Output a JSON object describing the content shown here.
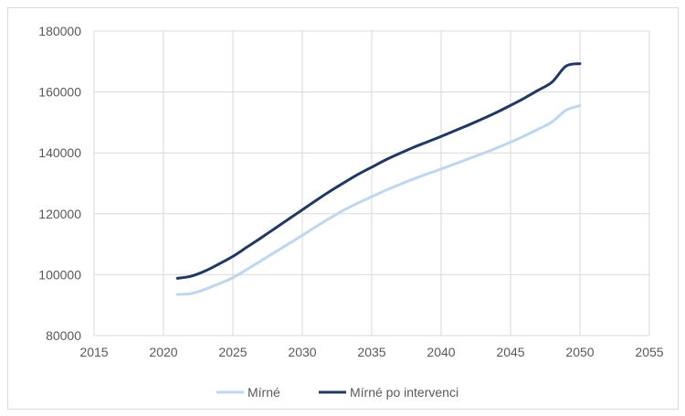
{
  "chart_data": {
    "type": "line",
    "title": "",
    "xlabel": "",
    "ylabel": "",
    "xlim": [
      2015,
      2055
    ],
    "ylim": [
      80000,
      180000
    ],
    "x_ticks": [
      2015,
      2020,
      2025,
      2030,
      2035,
      2040,
      2045,
      2050,
      2055
    ],
    "y_ticks": [
      80000,
      100000,
      120000,
      140000,
      160000,
      180000
    ],
    "x_tick_labels": [
      "2015",
      "2020",
      "2025",
      "2030",
      "2035",
      "2040",
      "2045",
      "2050",
      "2055"
    ],
    "y_tick_labels": [
      "80000",
      "100000",
      "120000",
      "140000",
      "160000",
      "180000"
    ],
    "grid": true,
    "legend_position": "bottom",
    "series": [
      {
        "name": "Mírné",
        "color": "#bdd7ee",
        "x": [
          2021,
          2022,
          2023,
          2024,
          2025,
          2026,
          2027,
          2028,
          2029,
          2030,
          2031,
          2032,
          2033,
          2034,
          2035,
          2036,
          2037,
          2038,
          2039,
          2040,
          2041,
          2042,
          2043,
          2044,
          2045,
          2046,
          2047,
          2048,
          2049,
          2050
        ],
        "y": [
          93500,
          93800,
          95200,
          97000,
          99000,
          101700,
          104500,
          107300,
          110100,
          112900,
          115800,
          118600,
          121200,
          123500,
          125600,
          127700,
          129600,
          131400,
          133100,
          134700,
          136400,
          138100,
          139800,
          141600,
          143500,
          145600,
          147800,
          150200,
          154000,
          155500
        ]
      },
      {
        "name": "Mírné po intervenci",
        "color": "#1f3864",
        "x": [
          2021,
          2022,
          2023,
          2024,
          2025,
          2026,
          2027,
          2028,
          2029,
          2030,
          2031,
          2032,
          2033,
          2034,
          2035,
          2036,
          2037,
          2038,
          2039,
          2040,
          2041,
          2042,
          2043,
          2044,
          2045,
          2046,
          2047,
          2048,
          2049,
          2050
        ],
        "y": [
          98800,
          99500,
          101200,
          103500,
          106000,
          109000,
          112000,
          115100,
          118200,
          121300,
          124400,
          127400,
          130200,
          132900,
          135300,
          137700,
          139800,
          141800,
          143600,
          145400,
          147300,
          149200,
          151200,
          153300,
          155600,
          158000,
          160600,
          163300,
          168500,
          169300
        ]
      }
    ]
  }
}
